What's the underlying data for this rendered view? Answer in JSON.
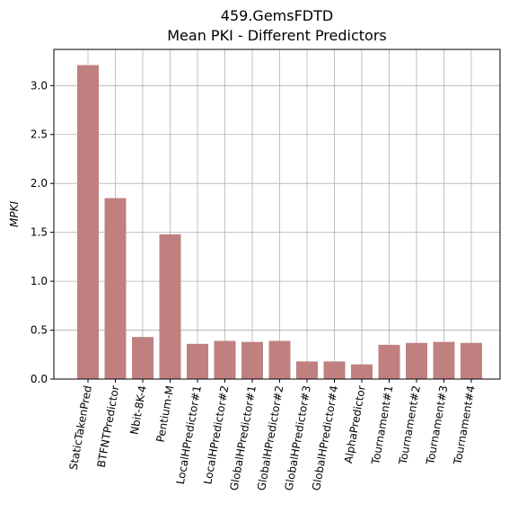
{
  "chart_data": {
    "type": "bar",
    "title": "459.GemsFDTD",
    "subtitle": "Mean PKI - Different Predictors",
    "xlabel": "",
    "ylabel": "MPKI",
    "ylim": [
      0,
      3.37
    ],
    "yticks": [
      "0.0",
      "0.5",
      "1.0",
      "1.5",
      "2.0",
      "2.5",
      "3.0"
    ],
    "grid": true,
    "bar_color": "#c08080",
    "categories": [
      "StaticTakenPred",
      "BTFNTPredictor",
      "Nbit-8K-4",
      "Pentium-M",
      "LocalHPredictor#1",
      "LocalHPredictor#2",
      "GlobalHPredictor#1",
      "GlobalHPredictor#2",
      "GlobalHPredictor#3",
      "GlobalHPredictor#4",
      "AlphaPredictor",
      "Tournament#1",
      "Tournament#2",
      "Tournament#3",
      "Tournament#4"
    ],
    "values": [
      3.21,
      1.85,
      0.43,
      1.48,
      0.36,
      0.39,
      0.38,
      0.39,
      0.18,
      0.18,
      0.15,
      0.35,
      0.37,
      0.38,
      0.37
    ]
  }
}
